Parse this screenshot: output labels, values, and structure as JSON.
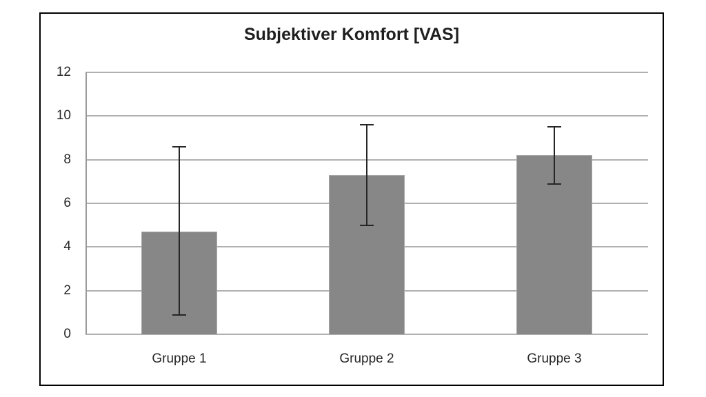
{
  "chart_data": {
    "type": "bar",
    "title": "Subjektiver Komfort [VAS]",
    "categories": [
      "Gruppe 1",
      "Gruppe 2",
      "Gruppe 3"
    ],
    "values": [
      4.7,
      7.3,
      8.2
    ],
    "error_top": [
      8.6,
      9.6,
      9.5
    ],
    "error_bottom": [
      0.9,
      5.0,
      6.9
    ],
    "ylim": [
      0,
      12
    ],
    "yticks": [
      0,
      2,
      4,
      6,
      8,
      10,
      12
    ],
    "xlabel": "",
    "ylabel": "",
    "grid": true,
    "legend": "none",
    "colors": {
      "bar_fill": "#878787",
      "bar_border": "#a8a8a8",
      "gridline": "#b0b0b0",
      "axis_line": "#9a9a9a",
      "error_bar": "#262626",
      "tick_label": "#262626",
      "title": "#1f1f1f",
      "frame_border": "#000000",
      "background": "#ffffff"
    }
  }
}
